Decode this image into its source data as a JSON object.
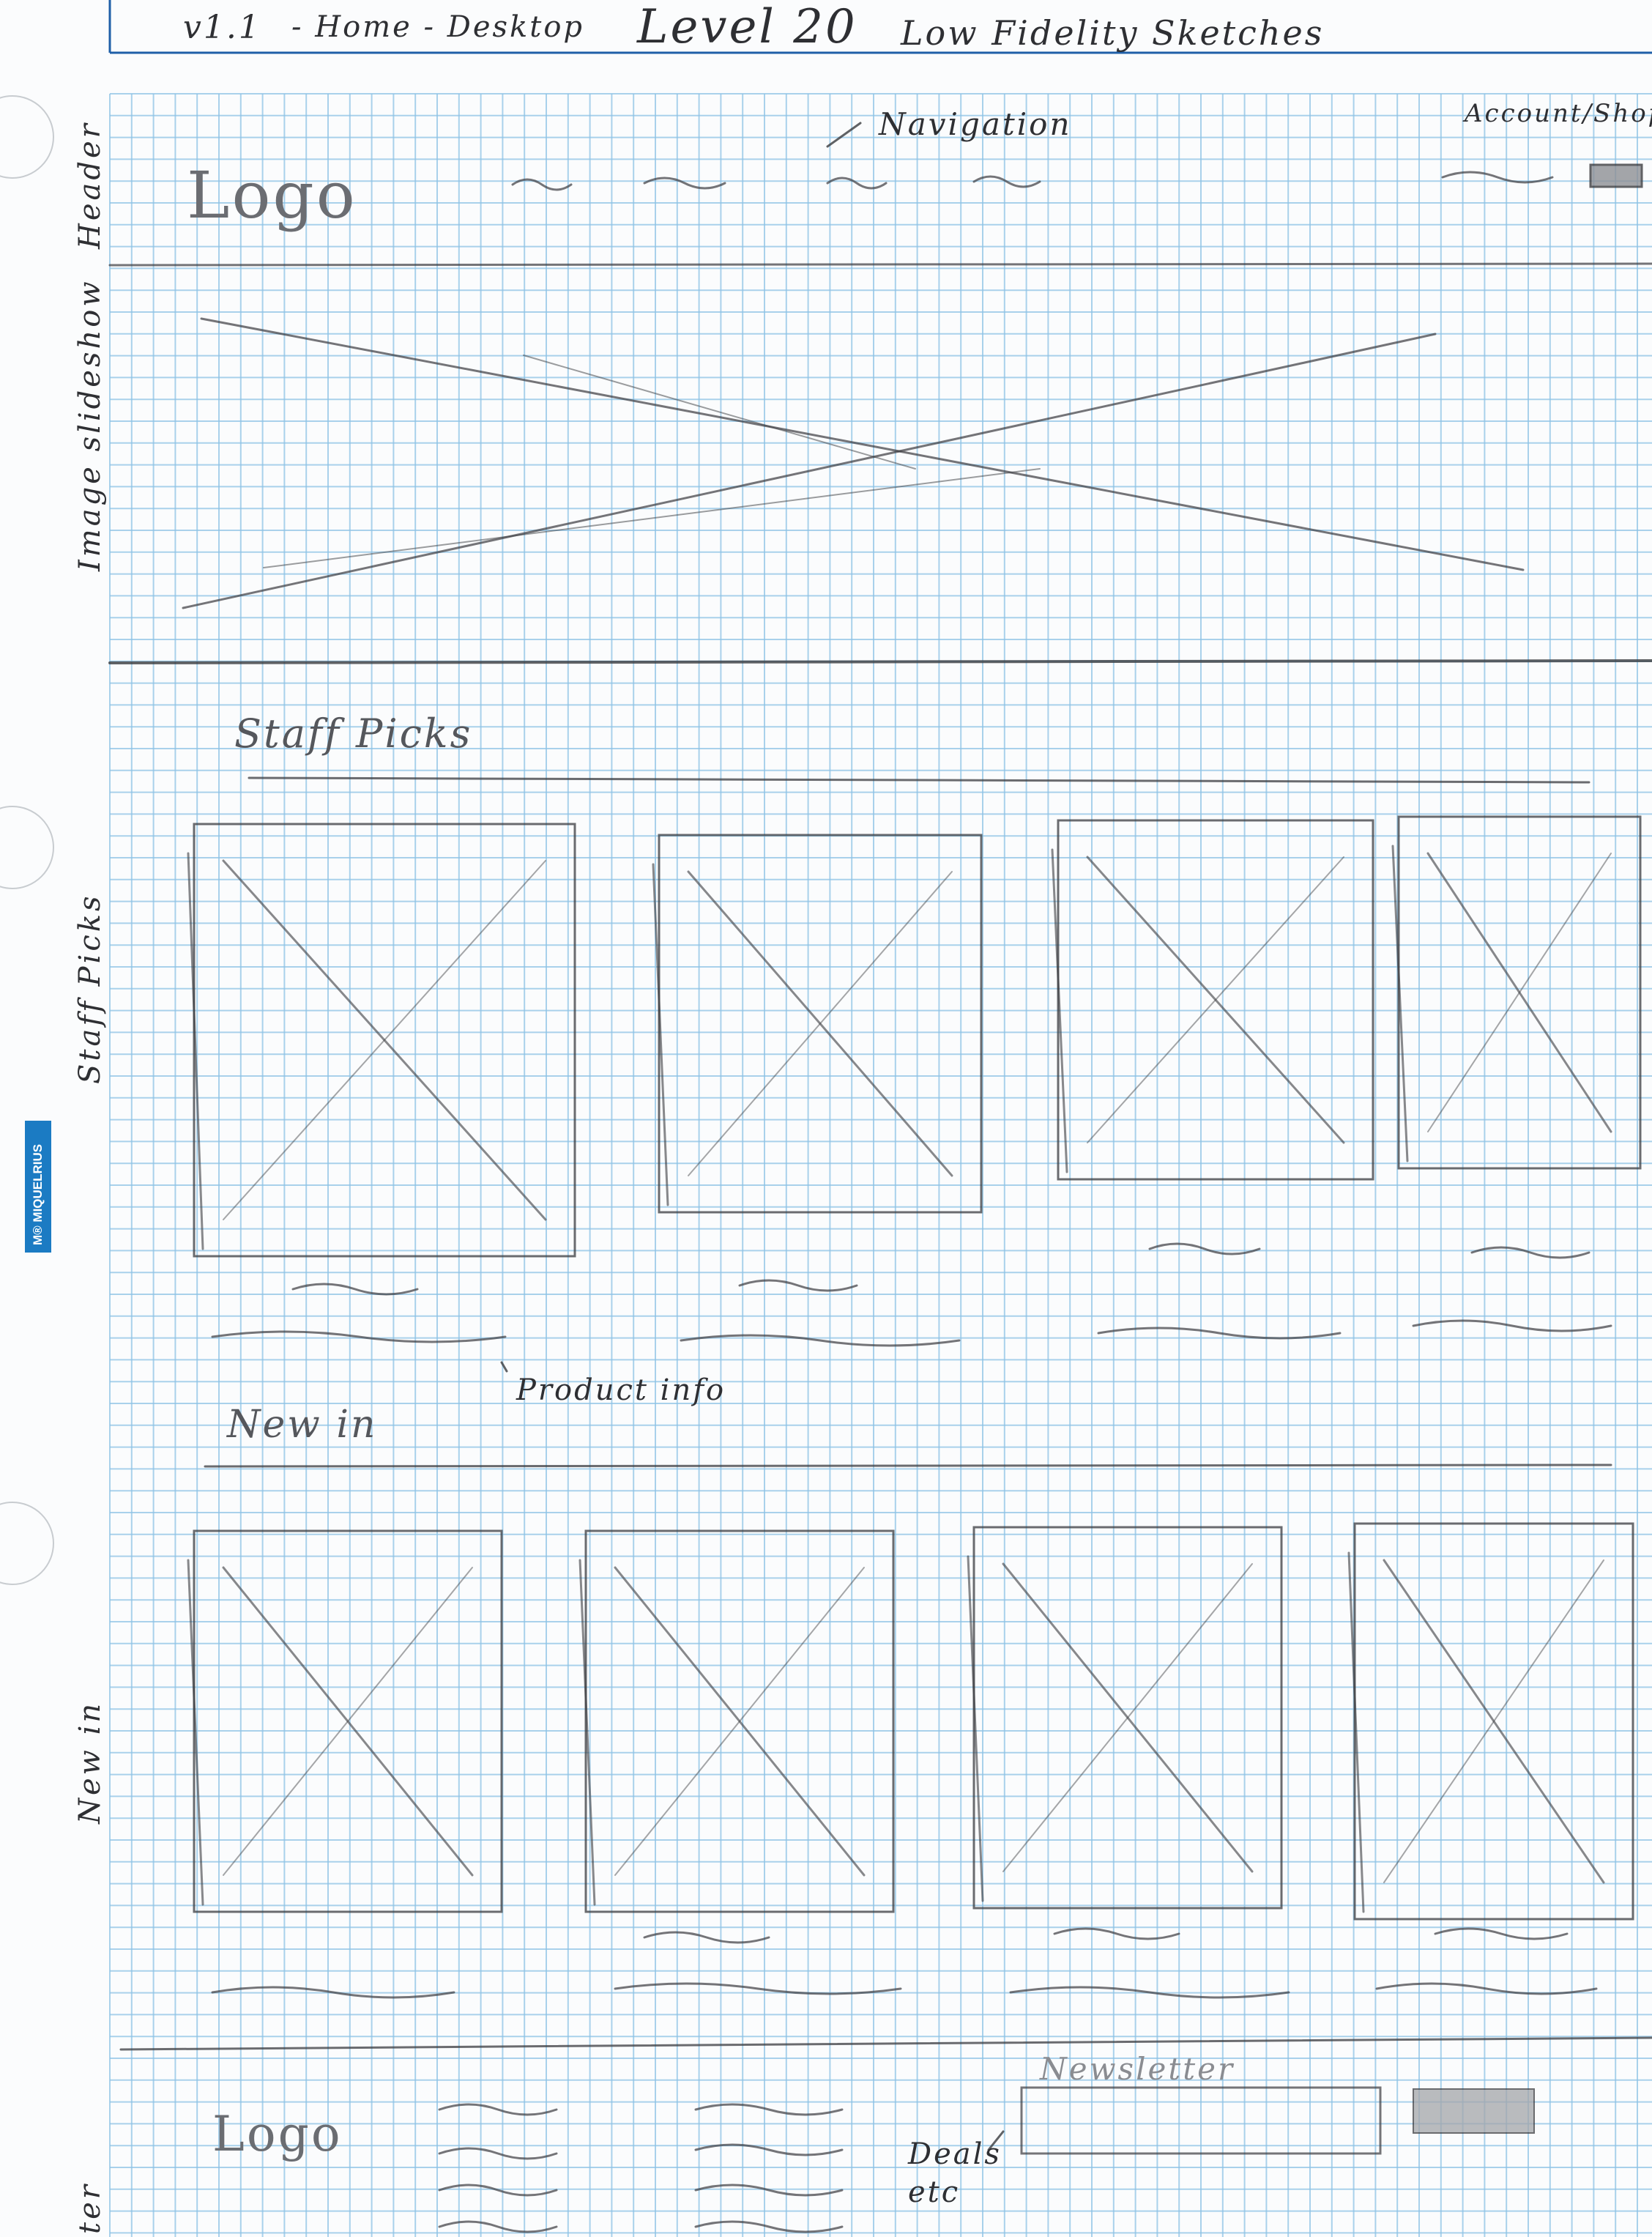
{
  "title_bar": {
    "version": "v1.1",
    "page": "- Home - Desktop",
    "heading": "Level 20",
    "subheading": "Low Fidelity Sketches"
  },
  "paper_brand": {
    "mark": "M®",
    "name": "MIQUELRIUS"
  },
  "side_labels": {
    "header": "Header",
    "image_slideshow": "Image slideshow",
    "staff_picks": "Staff Picks",
    "new_in": "New in",
    "footer": "ter"
  },
  "header": {
    "logo": "Logo",
    "navigation_note": "Navigation",
    "account_note": "Account/Shop"
  },
  "staff_picks": {
    "heading": "Staff Picks",
    "product_note": "Product info",
    "count": 4
  },
  "new_in": {
    "heading": "New in",
    "count": 4
  },
  "footer": {
    "logo": "Logo",
    "newsletter_label": "Newsletter",
    "deals_note": "Deals etc"
  },
  "colors": {
    "grid": "#8ec3e6",
    "pencil": "#3a3b3f",
    "border": "#1f5fa8",
    "brand": "#1b7bc3"
  }
}
